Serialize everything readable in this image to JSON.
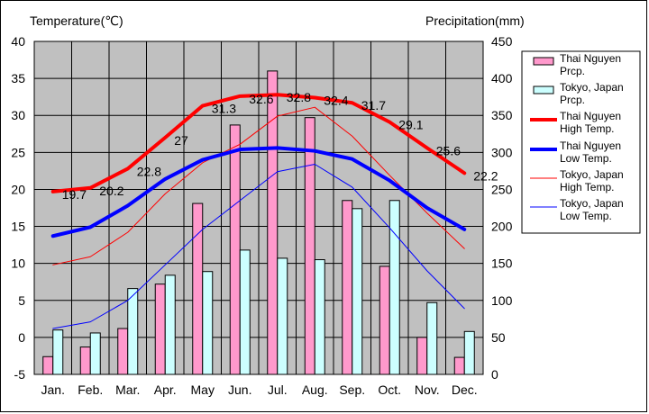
{
  "chart_data": {
    "type": "bar+line",
    "categories": [
      "Jan.",
      "Feb.",
      "Mar.",
      "Apr.",
      "May",
      "Jun.",
      "Jul.",
      "Aug.",
      "Sep.",
      "Oct.",
      "Nov.",
      "Dec."
    ],
    "left_axis": {
      "title": "Temperature(℃)",
      "range": [
        -5,
        40
      ],
      "ticks": [
        -5,
        0,
        5,
        10,
        15,
        20,
        25,
        30,
        35,
        40
      ]
    },
    "right_axis": {
      "title": "Precipitation(mm)",
      "range": [
        0,
        450
      ],
      "ticks": [
        0,
        50,
        100,
        150,
        200,
        250,
        300,
        350,
        400,
        450
      ]
    },
    "grid": true,
    "legend_position": "right",
    "series": [
      {
        "name": "Thai Nguyen Prcp.",
        "kind": "bar",
        "axis": "right",
        "color": "#ff99cc",
        "values": [
          24,
          37,
          62,
          122,
          231,
          337,
          410,
          347,
          235,
          146,
          50,
          23
        ]
      },
      {
        "name": "Tokyo, Japan Prcp.",
        "kind": "bar",
        "axis": "right",
        "color": "#ccffff",
        "values": [
          60,
          56,
          116,
          134,
          139,
          168,
          157,
          155,
          224,
          235,
          97,
          58
        ]
      },
      {
        "name": "Thai Nguyen High Temp.",
        "kind": "line",
        "axis": "left",
        "color": "#ff0000",
        "width": "thick",
        "values": [
          19.7,
          20.2,
          22.8,
          27,
          31.3,
          32.6,
          32.8,
          32.4,
          31.7,
          29.1,
          25.6,
          22.2
        ],
        "labels": [
          "19.7",
          "20.2",
          "22.8",
          "27",
          "31.3",
          "32.6",
          "32.8",
          "32.4",
          "31.7",
          "29.1",
          "25.6",
          "22.2"
        ]
      },
      {
        "name": "Thai Nguyen Low Temp.",
        "kind": "line",
        "axis": "left",
        "color": "#0000ff",
        "width": "thick",
        "values": [
          13.7,
          14.9,
          17.8,
          21.4,
          24,
          25.4,
          25.6,
          25.2,
          24.1,
          21.2,
          17.5,
          14.6
        ]
      },
      {
        "name": "Tokyo, Japan High Temp.",
        "kind": "line",
        "axis": "left",
        "color": "#ff0000",
        "width": "thin",
        "values": [
          9.8,
          10.9,
          14.2,
          19.4,
          23.6,
          26.1,
          29.9,
          31.1,
          27.2,
          21.9,
          16.8,
          12
        ]
      },
      {
        "name": "Tokyo, Japan Low Temp.",
        "kind": "line",
        "axis": "left",
        "color": "#0000ff",
        "width": "thin",
        "values": [
          1.2,
          2.1,
          5,
          9.8,
          14.6,
          18.5,
          22.4,
          23.4,
          20.3,
          14.8,
          9,
          3.9
        ]
      }
    ],
    "legend": [
      {
        "line1": "Thai Nguyen",
        "line2": "Prcp."
      },
      {
        "line1": "Tokyo, Japan",
        "line2": "Prcp."
      },
      {
        "line1": "Thai Nguyen",
        "line2": "High Temp."
      },
      {
        "line1": "Thai Nguyen",
        "line2": "Low Temp."
      },
      {
        "line1": "Tokyo, Japan",
        "line2": "High Temp."
      },
      {
        "line1": "Tokyo, Japan",
        "line2": "Low Temp."
      }
    ]
  }
}
